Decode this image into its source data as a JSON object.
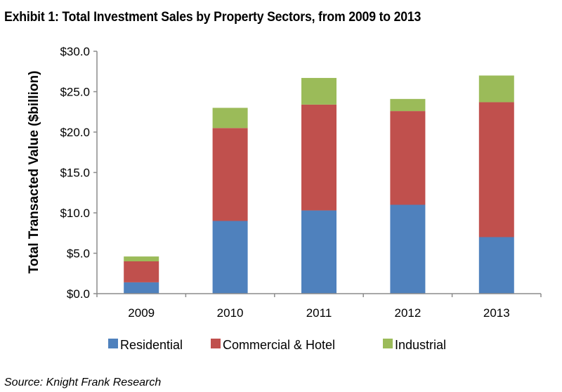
{
  "title": "Exhibit 1: Total Investment Sales by Property Sectors, from 2009 to 2013",
  "source": "Source: Knight Frank Research",
  "chart_data": {
    "type": "bar",
    "stacked": true,
    "title": "Exhibit 1: Total Investment Sales by Property Sectors, from 2009 to 2013",
    "xlabel": "",
    "ylabel": "Total Transacted Value ($billion)",
    "ylim": [
      0,
      30
    ],
    "yticks": [
      0,
      5,
      10,
      15,
      20,
      25,
      30
    ],
    "ytick_labels": [
      "$0.0",
      "$5.0",
      "$10.0",
      "$15.0",
      "$20.0",
      "$25.0",
      "$30.0"
    ],
    "categories": [
      "2009",
      "2010",
      "2011",
      "2012",
      "2013"
    ],
    "series": [
      {
        "name": "Residential",
        "color": "#4f81bd",
        "values": [
          1.4,
          9.0,
          10.3,
          11.0,
          7.0
        ]
      },
      {
        "name": "Commercial & Hotel",
        "color": "#c0504d",
        "values": [
          2.6,
          11.5,
          13.1,
          11.6,
          16.7
        ]
      },
      {
        "name": "Industrial",
        "color": "#9bbb59",
        "values": [
          0.6,
          2.5,
          3.3,
          1.5,
          3.3
        ]
      }
    ],
    "grid": false,
    "legend_position": "bottom"
  }
}
